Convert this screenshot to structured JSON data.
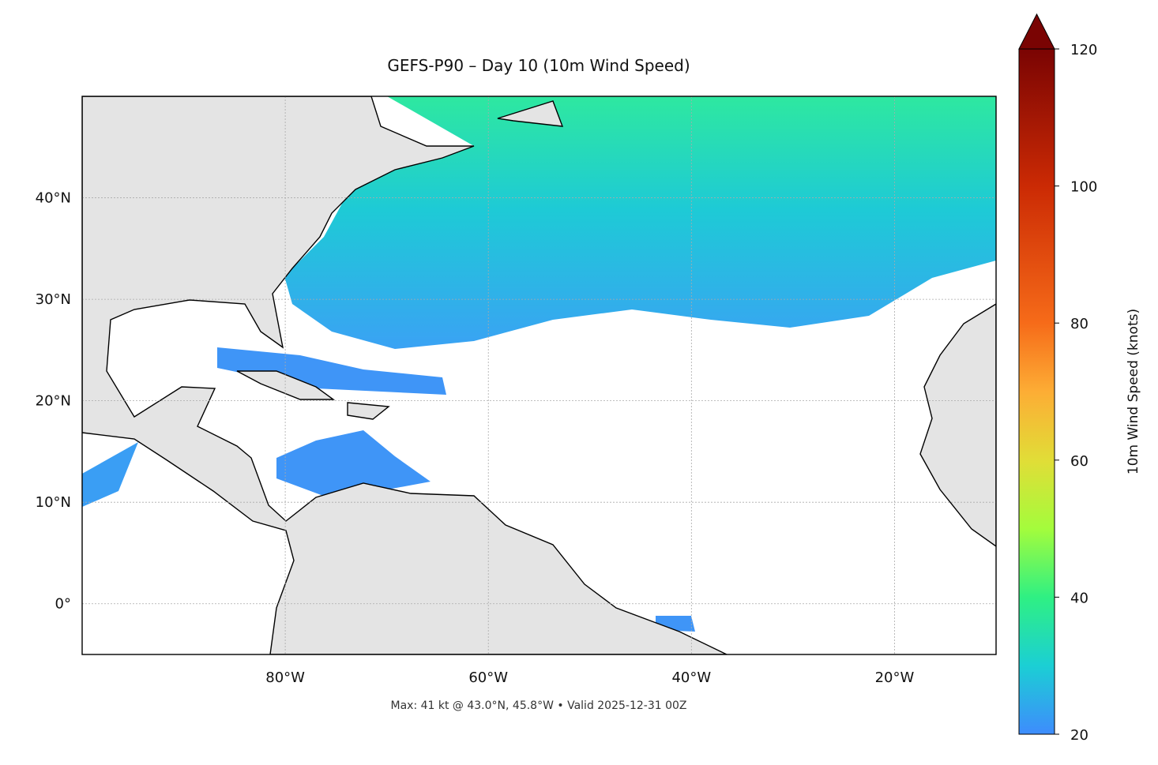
{
  "chart_data": {
    "type": "map",
    "title": "GEFS-P90 – Day 10 (10m Wind Speed)",
    "footnote": "Max: 41 kt @ 43.0°N, 45.8°W • Valid 2025-12-31 00Z",
    "xlim": [
      -100,
      -10
    ],
    "ylim": [
      -5,
      50
    ],
    "xticks": [
      {
        "value": -80,
        "label": "80°W"
      },
      {
        "value": -60,
        "label": "60°W"
      },
      {
        "value": -40,
        "label": "40°W"
      },
      {
        "value": -20,
        "label": "20°W"
      }
    ],
    "yticks": [
      {
        "value": 0,
        "label": "0°"
      },
      {
        "value": 10,
        "label": "10°N"
      },
      {
        "value": 20,
        "label": "20°N"
      },
      {
        "value": 30,
        "label": "30°N"
      },
      {
        "value": 40,
        "label": "40°N"
      }
    ],
    "grid": true,
    "colorbar": {
      "label": "10m Wind Speed (knots)",
      "lim": [
        20,
        120
      ],
      "ticks": [
        20,
        40,
        60,
        80,
        100,
        120
      ],
      "extend": "max"
    }
  }
}
